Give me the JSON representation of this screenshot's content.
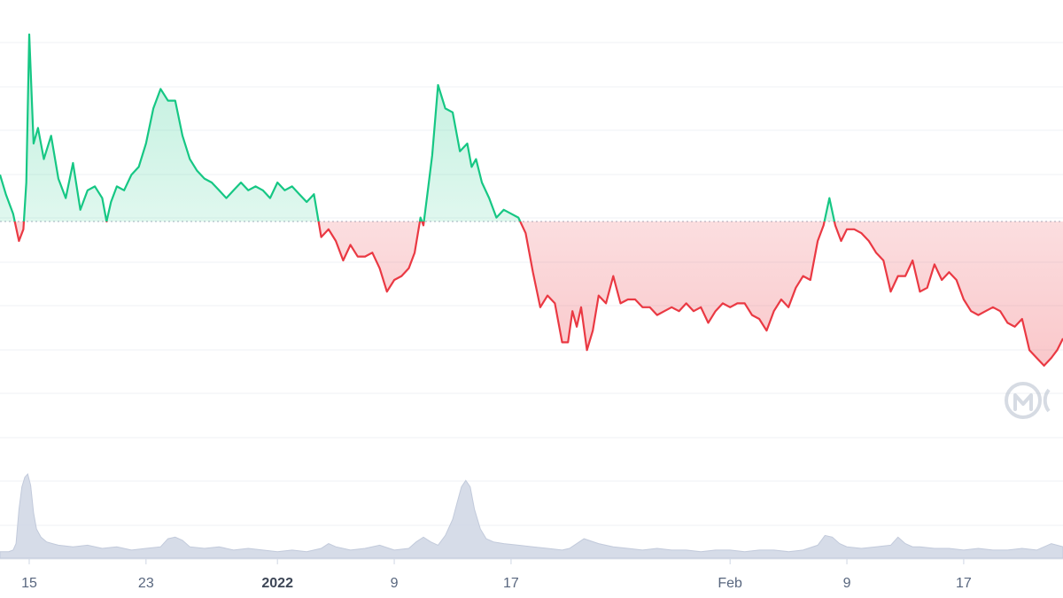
{
  "chart_data": {
    "type": "line",
    "title": "",
    "xlabel": "",
    "ylabel": "",
    "grid": true,
    "legend": "none",
    "x_ticks": [
      {
        "label": "15",
        "t": 2.0,
        "bold": false
      },
      {
        "label": "23",
        "t": 10.0,
        "bold": false
      },
      {
        "label": "2022",
        "t": 19.0,
        "bold": true
      },
      {
        "label": "9",
        "t": 27.0,
        "bold": false
      },
      {
        "label": "17",
        "t": 35.0,
        "bold": false
      },
      {
        "label": "Feb",
        "t": 50.0,
        "bold": false
      },
      {
        "label": "9",
        "t": 58.0,
        "bold": false
      },
      {
        "label": "17",
        "t": 66.0,
        "bold": false
      }
    ],
    "x_range": [
      0,
      72.8
    ],
    "y_range": [
      0,
      100
    ],
    "baseline": 50,
    "price_series": {
      "t": [
        0,
        0.4,
        0.9,
        1.3,
        1.6,
        1.8,
        2.0,
        2.3,
        2.6,
        3.0,
        3.5,
        4.0,
        4.5,
        5.0,
        5.5,
        6.0,
        6.5,
        7.0,
        7.3,
        7.6,
        8.0,
        8.5,
        9.0,
        9.5,
        10.0,
        10.5,
        11.0,
        11.5,
        12.0,
        12.5,
        13.0,
        13.5,
        14.0,
        14.5,
        15.0,
        15.5,
        16.0,
        16.5,
        17.0,
        17.5,
        18.0,
        18.5,
        19.0,
        19.5,
        20.0,
        20.5,
        21.0,
        21.5,
        22.0,
        22.5,
        23.0,
        23.5,
        24.0,
        24.5,
        25.0,
        25.5,
        26.0,
        26.5,
        27.0,
        27.5,
        28.0,
        28.4,
        28.8,
        29.0,
        29.3,
        29.6,
        30.0,
        30.5,
        31.0,
        31.5,
        32.0,
        32.3,
        32.6,
        33.0,
        33.5,
        34.0,
        34.5,
        35.0,
        35.5,
        36.0,
        36.5,
        37.0,
        37.5,
        38.0,
        38.5,
        38.9,
        39.2,
        39.5,
        39.8,
        40.2,
        40.6,
        41.0,
        41.5,
        42.0,
        42.5,
        43.0,
        43.5,
        44.0,
        44.5,
        45.0,
        45.5,
        46.0,
        46.5,
        47.0,
        47.5,
        48.0,
        48.5,
        49.0,
        49.5,
        50.0,
        50.5,
        51.0,
        51.5,
        52.0,
        52.5,
        53.0,
        53.5,
        54.0,
        54.5,
        55.0,
        55.5,
        56.0,
        56.4,
        56.8,
        57.2,
        57.6,
        58.0,
        58.5,
        59.0,
        59.5,
        60.0,
        60.5,
        61.0,
        61.5,
        62.0,
        62.5,
        63.0,
        63.5,
        64.0,
        64.5,
        65.0,
        65.5,
        66.0,
        66.5,
        67.0,
        67.5,
        68.0,
        68.5,
        69.0,
        69.5,
        70.0,
        70.5,
        71.0,
        71.5,
        72.0,
        72.4,
        72.8
      ],
      "v": [
        62,
        57,
        52,
        45,
        48,
        60,
        98,
        70,
        74,
        66,
        72,
        61,
        56,
        65,
        53,
        58,
        59,
        56,
        50,
        55,
        59,
        58,
        62,
        64,
        70,
        79,
        84,
        81,
        81,
        72,
        66,
        63,
        61,
        60,
        58,
        56,
        58,
        60,
        58,
        59,
        58,
        56,
        60,
        58,
        59,
        57,
        55,
        57,
        46,
        48,
        45,
        40,
        44,
        41,
        41,
        42,
        38,
        32,
        35,
        36,
        38,
        42,
        51,
        49,
        58,
        67,
        85,
        79,
        78,
        68,
        70,
        64,
        66,
        60,
        56,
        51,
        53,
        52,
        51,
        47,
        37,
        28,
        31,
        29,
        19,
        19,
        27,
        23,
        28,
        17,
        22,
        31,
        29,
        36,
        29,
        30,
        30,
        28,
        28,
        26,
        27,
        28,
        27,
        29,
        27,
        28,
        24,
        27,
        29,
        28,
        29,
        29,
        26,
        25,
        22,
        27,
        30,
        28,
        33,
        36,
        35,
        45,
        49,
        56,
        49,
        45,
        48,
        48,
        47,
        45,
        42,
        40,
        32,
        36,
        36,
        40,
        32,
        33,
        39,
        35,
        37,
        35,
        30,
        27,
        26,
        27,
        28,
        27,
        24,
        23,
        25,
        17,
        15,
        13,
        15,
        17,
        20,
        23
      ]
    },
    "volume_series": {
      "t": [
        0,
        0.6,
        0.9,
        1.1,
        1.3,
        1.5,
        1.7,
        1.9,
        2.1,
        2.3,
        2.5,
        2.8,
        3.2,
        3.6,
        4.0,
        5.0,
        6.0,
        7.0,
        8.0,
        9.0,
        10.0,
        11.0,
        11.5,
        12.0,
        12.5,
        13.0,
        14.0,
        15.0,
        16.0,
        17.0,
        18.0,
        19.0,
        20.0,
        21.0,
        22.0,
        22.5,
        23.0,
        24.0,
        25.0,
        26.0,
        27.0,
        28.0,
        28.5,
        29.0,
        29.5,
        30.0,
        30.5,
        31.0,
        31.3,
        31.6,
        31.9,
        32.2,
        32.5,
        32.9,
        33.3,
        33.8,
        34.5,
        35.5,
        36.5,
        37.5,
        38.5,
        39.0,
        39.5,
        40.0,
        41.0,
        42.0,
        43.0,
        44.0,
        45.0,
        46.0,
        47.0,
        48.0,
        49.0,
        50.0,
        51.0,
        52.0,
        53.0,
        54.0,
        55.0,
        56.0,
        56.5,
        57.0,
        57.5,
        58.0,
        59.0,
        60.0,
        61.0,
        61.5,
        62.0,
        62.5,
        63.0,
        64.0,
        65.0,
        66.0,
        67.0,
        68.0,
        69.0,
        70.0,
        71.0,
        72.0,
        72.8
      ],
      "v": [
        4,
        4,
        5,
        9,
        30,
        44,
        50,
        52,
        45,
        28,
        18,
        13,
        10,
        9,
        8,
        7,
        8,
        6,
        7,
        5,
        6,
        7,
        12,
        13,
        11,
        7,
        6,
        7,
        5,
        6,
        5,
        4,
        5,
        4,
        6,
        9,
        7,
        5,
        6,
        8,
        5,
        6,
        10,
        13,
        10,
        8,
        14,
        24,
        34,
        44,
        48,
        44,
        30,
        18,
        12,
        10,
        9,
        8,
        7,
        6,
        5,
        6,
        9,
        12,
        9,
        7,
        6,
        5,
        6,
        5,
        5,
        4,
        5,
        5,
        4,
        5,
        5,
        4,
        5,
        8,
        14,
        13,
        9,
        7,
        6,
        7,
        8,
        13,
        9,
        7,
        7,
        6,
        6,
        5,
        6,
        5,
        5,
        6,
        5,
        9,
        7
      ]
    },
    "colors": {
      "up_line": "#16c784",
      "down_line": "#ea3943",
      "up_fill_top": "#16c784",
      "down_fill_bottom": "#ea3943",
      "volume_fill": "#cfd6e4",
      "grid": "#eff2f5",
      "baseline": "#b8bfcc",
      "tick_text": "#58667e"
    },
    "watermark": {
      "icon": "coinmarketcap-logo-icon"
    }
  }
}
